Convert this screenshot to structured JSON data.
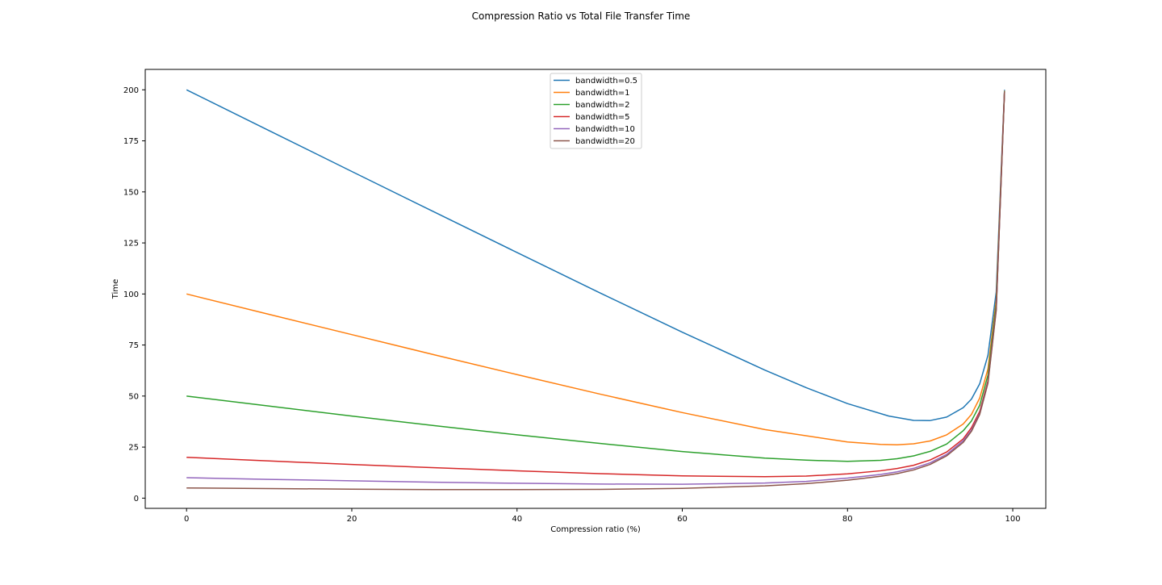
{
  "chart_data": {
    "type": "line",
    "title": "Compression Ratio vs Total File Transfer Time",
    "xlabel": "Compression ratio (%)",
    "ylabel": "Time",
    "xlim": [
      -5,
      104
    ],
    "ylim": [
      -5,
      210
    ],
    "xticks": [
      0,
      20,
      40,
      60,
      80,
      100
    ],
    "yticks": [
      0,
      25,
      50,
      75,
      100,
      125,
      150,
      175,
      200
    ],
    "grid": false,
    "legend_position": "top-center",
    "series": [
      {
        "name": "bandwidth=0.5",
        "color": "#1f77b4",
        "points": [
          [
            0,
            200
          ],
          [
            10,
            180
          ],
          [
            20,
            160
          ],
          [
            30,
            140.1
          ],
          [
            40,
            120.3
          ],
          [
            50,
            100.6
          ],
          [
            60,
            81.3
          ],
          [
            70,
            62.7
          ],
          [
            75,
            54.1
          ],
          [
            80,
            46.3
          ],
          [
            85,
            40.2
          ],
          [
            88,
            38.1
          ],
          [
            90,
            38.0
          ],
          [
            92,
            39.7
          ],
          [
            94,
            44.3
          ],
          [
            95,
            48.5
          ],
          [
            96,
            56.0
          ],
          [
            97,
            70.0
          ],
          [
            98,
            101.0
          ],
          [
            99,
            200.0
          ]
        ]
      },
      {
        "name": "bandwidth=1",
        "color": "#ff7f0e",
        "points": [
          [
            0,
            100
          ],
          [
            10,
            90
          ],
          [
            20,
            80.1
          ],
          [
            30,
            70.2
          ],
          [
            40,
            60.5
          ],
          [
            50,
            51.0
          ],
          [
            60,
            41.9
          ],
          [
            70,
            33.6
          ],
          [
            80,
            27.5
          ],
          [
            84,
            26.3
          ],
          [
            86,
            26.1
          ],
          [
            88,
            26.6
          ],
          [
            90,
            28.0
          ],
          [
            92,
            31.0
          ],
          [
            94,
            36.3
          ],
          [
            95,
            41.0
          ],
          [
            96,
            49.0
          ],
          [
            97,
            63.3
          ],
          [
            98,
            97.0
          ],
          [
            99,
            199.5
          ]
        ]
      },
      {
        "name": "bandwidth=2",
        "color": "#2ca02c",
        "points": [
          [
            0,
            50
          ],
          [
            10,
            45.1
          ],
          [
            20,
            40.2
          ],
          [
            30,
            35.5
          ],
          [
            40,
            31.0
          ],
          [
            50,
            26.8
          ],
          [
            60,
            22.8
          ],
          [
            70,
            19.6
          ],
          [
            75,
            18.6
          ],
          [
            80,
            18.0
          ],
          [
            84,
            18.5
          ],
          [
            86,
            19.3
          ],
          [
            88,
            20.7
          ],
          [
            90,
            22.9
          ],
          [
            92,
            26.5
          ],
          [
            94,
            33.0
          ],
          [
            95,
            37.8
          ],
          [
            96,
            45.5
          ],
          [
            97,
            60.3
          ],
          [
            98,
            95.0
          ],
          [
            99,
            199.3
          ]
        ]
      },
      {
        "name": "bandwidth=5",
        "color": "#d62728",
        "points": [
          [
            0,
            20
          ],
          [
            10,
            18.2
          ],
          [
            20,
            16.5
          ],
          [
            30,
            14.9
          ],
          [
            40,
            13.4
          ],
          [
            50,
            12.0
          ],
          [
            60,
            10.9
          ],
          [
            70,
            10.5
          ],
          [
            75,
            10.8
          ],
          [
            80,
            11.9
          ],
          [
            84,
            13.4
          ],
          [
            86,
            14.5
          ],
          [
            88,
            16.1
          ],
          [
            90,
            18.7
          ],
          [
            92,
            22.6
          ],
          [
            94,
            29.0
          ],
          [
            95,
            34.5
          ],
          [
            96,
            42.5
          ],
          [
            97,
            57.5
          ],
          [
            98,
            93.0
          ],
          [
            99,
            199.1
          ]
        ]
      },
      {
        "name": "bandwidth=10",
        "color": "#9467bd",
        "points": [
          [
            0,
            10
          ],
          [
            10,
            9.2
          ],
          [
            20,
            8.5
          ],
          [
            30,
            7.8
          ],
          [
            40,
            7.3
          ],
          [
            50,
            6.9
          ],
          [
            60,
            6.8
          ],
          [
            70,
            7.4
          ],
          [
            75,
            8.2
          ],
          [
            80,
            9.8
          ],
          [
            84,
            11.6
          ],
          [
            86,
            12.9
          ],
          [
            88,
            14.6
          ],
          [
            90,
            17.3
          ],
          [
            92,
            21.4
          ],
          [
            94,
            28.1
          ],
          [
            95,
            33.3
          ],
          [
            96,
            41.5
          ],
          [
            97,
            56.8
          ],
          [
            98,
            92.4
          ],
          [
            99,
            199.0
          ]
        ]
      },
      {
        "name": "bandwidth=20",
        "color": "#8c564b",
        "points": [
          [
            0,
            5
          ],
          [
            10,
            4.7
          ],
          [
            20,
            4.4
          ],
          [
            30,
            4.2
          ],
          [
            40,
            4.2
          ],
          [
            50,
            4.3
          ],
          [
            60,
            4.8
          ],
          [
            70,
            6.0
          ],
          [
            75,
            7.1
          ],
          [
            80,
            8.8
          ],
          [
            84,
            10.7
          ],
          [
            86,
            12.0
          ],
          [
            88,
            13.8
          ],
          [
            90,
            16.5
          ],
          [
            92,
            20.7
          ],
          [
            94,
            27.3
          ],
          [
            95,
            32.7
          ],
          [
            96,
            41.0
          ],
          [
            97,
            56.3
          ],
          [
            98,
            92.0
          ],
          [
            99,
            198.9
          ]
        ]
      }
    ]
  }
}
